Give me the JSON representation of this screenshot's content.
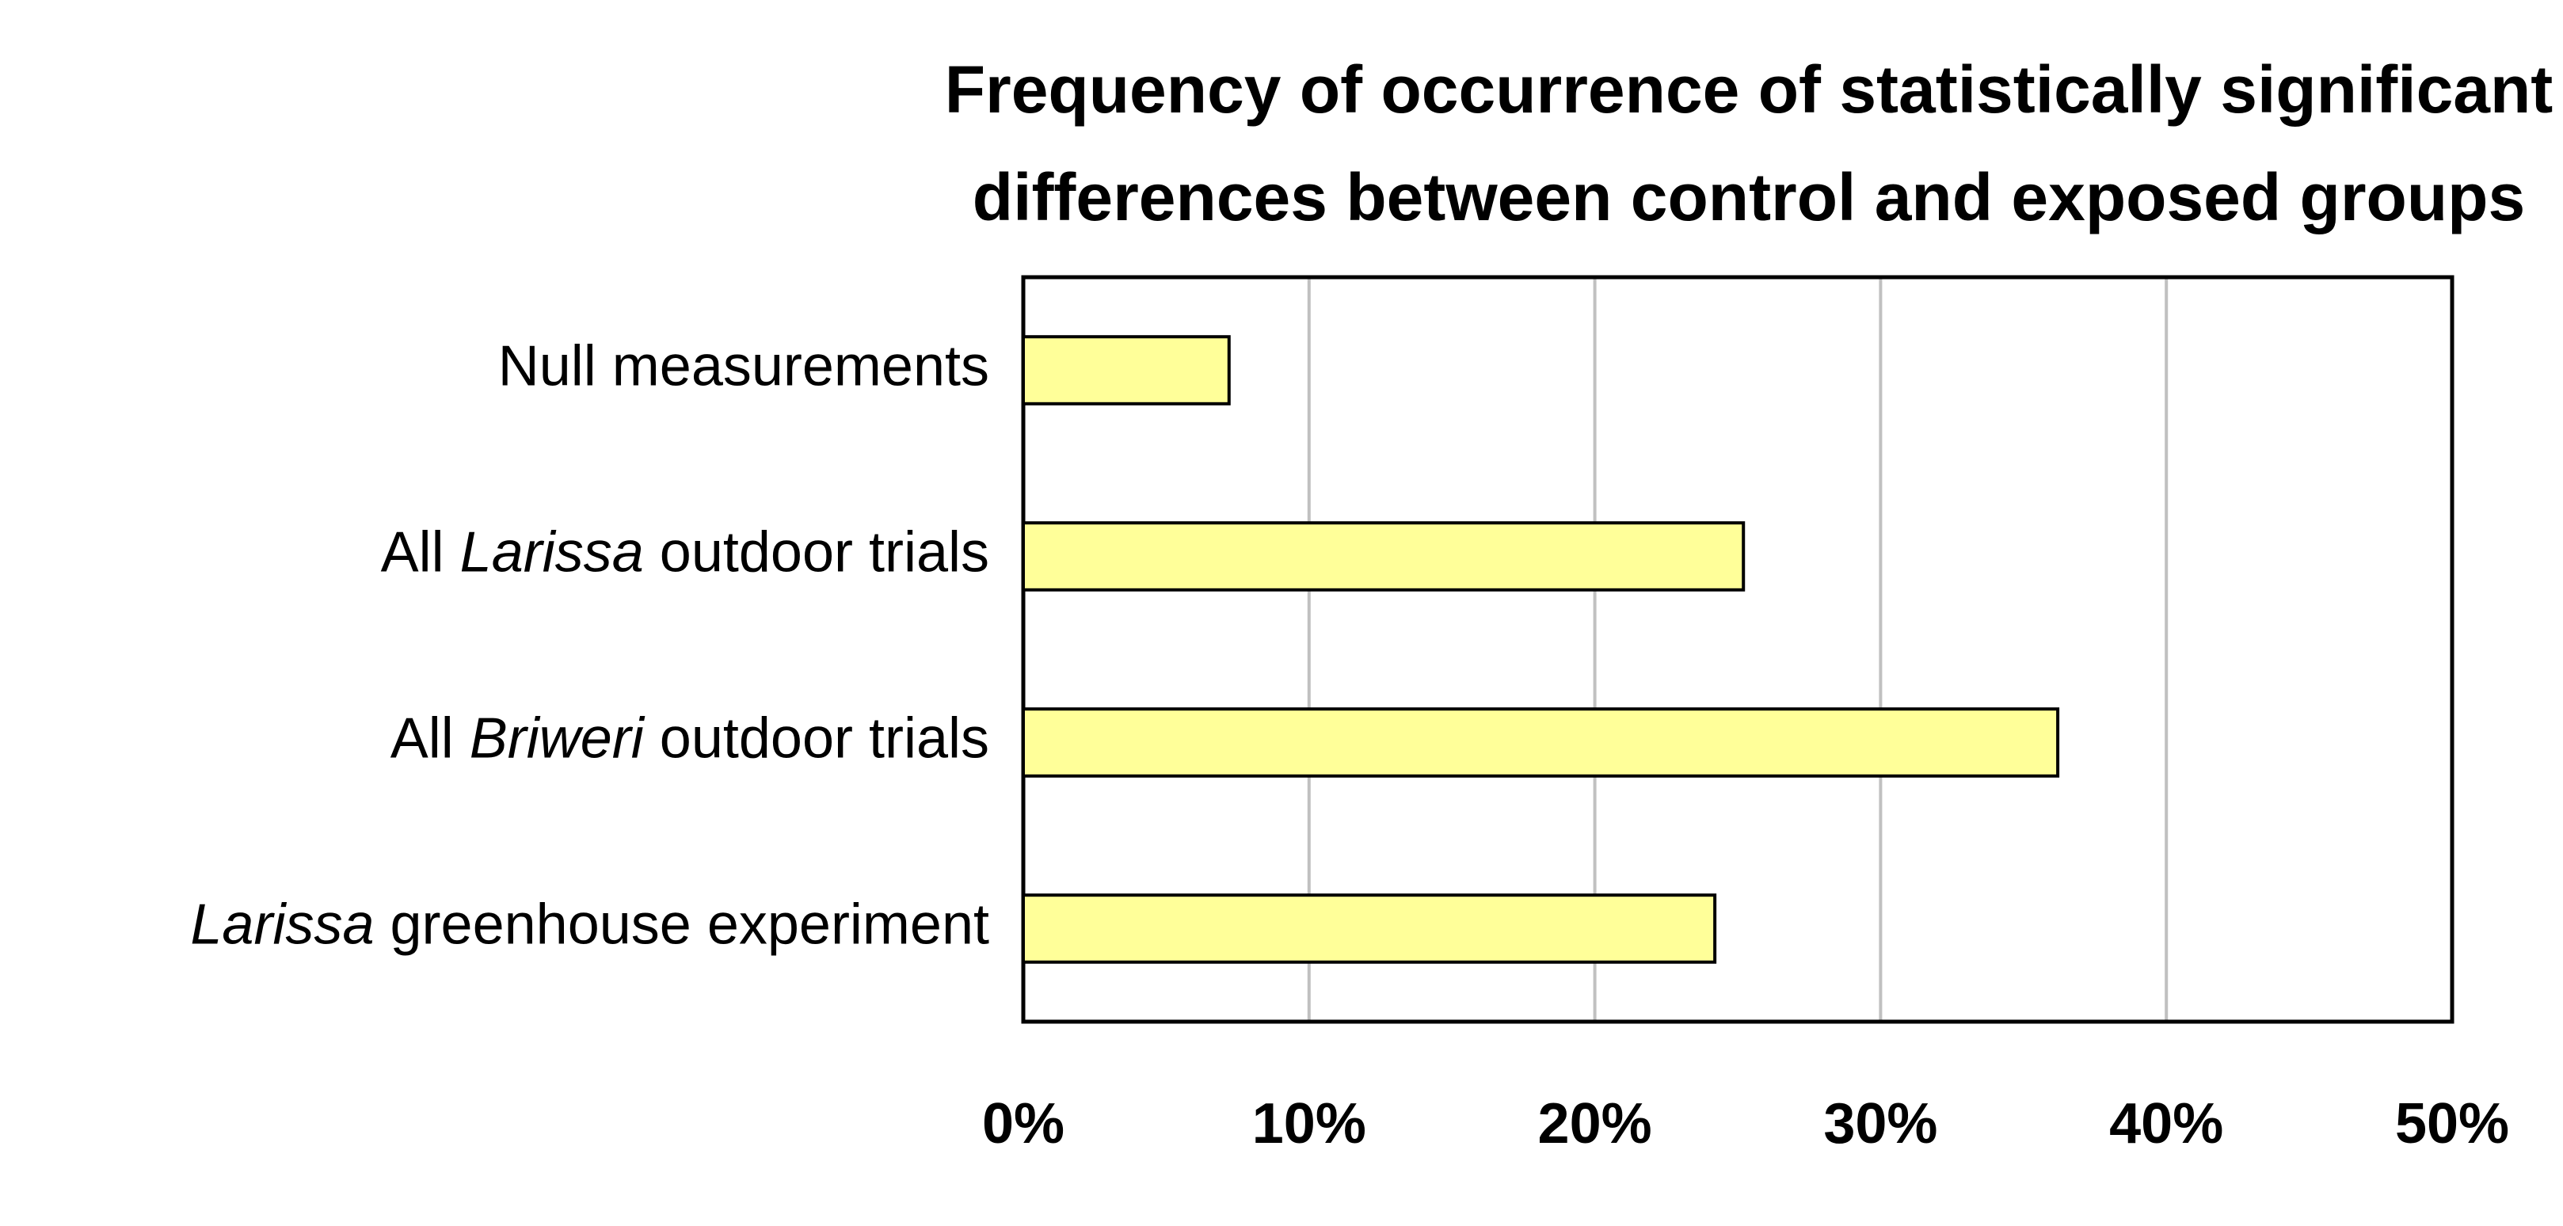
{
  "chart_data": {
    "type": "barh",
    "title": [
      "Frequency of occurrence of statistically significant",
      "differences between control and exposed groups"
    ],
    "categories": [
      [
        {
          "text": "Null measurements"
        }
      ],
      [
        {
          "text": "All "
        },
        {
          "text": "Larissa",
          "italic": true
        },
        {
          "text": " outdoor trials"
        }
      ],
      [
        {
          "text": "All "
        },
        {
          "text": "Briweri",
          "italic": true
        },
        {
          "text": " outdoor trials"
        }
      ],
      [
        {
          "text": "Larissa",
          "italic": true
        },
        {
          "text": " greenhouse experiment"
        }
      ]
    ],
    "values": [
      7.2,
      25.2,
      36.2,
      24.2
    ],
    "color": "#ffff99",
    "xlim": [
      0,
      50
    ],
    "xticks": [
      {
        "value": 0,
        "label": "0%"
      },
      {
        "value": 10,
        "label": "10%"
      },
      {
        "value": 20,
        "label": "20%"
      },
      {
        "value": 30,
        "label": "30%"
      },
      {
        "value": 40,
        "label": "40%"
      },
      {
        "value": 50,
        "label": "50%"
      }
    ],
    "grid": true
  }
}
